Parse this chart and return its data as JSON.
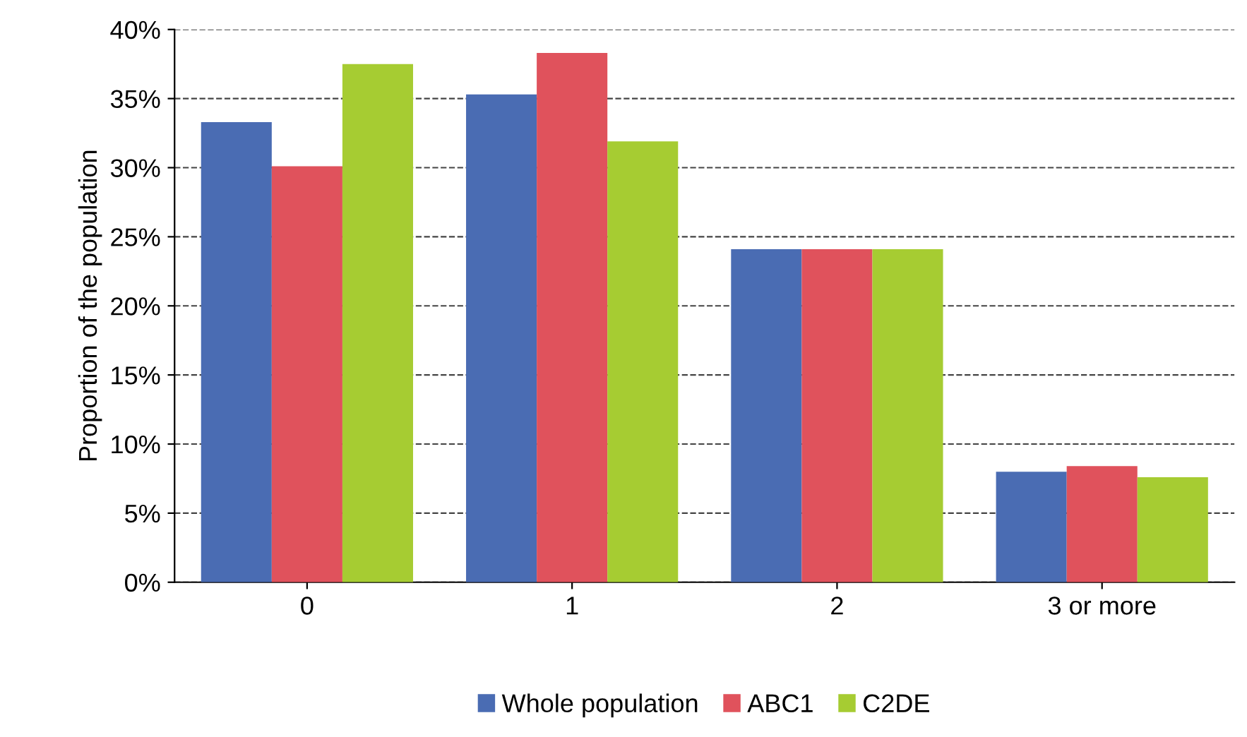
{
  "chart_data": {
    "type": "bar",
    "ylabel": "Proportion of the population",
    "categories": [
      "0",
      "1",
      "2",
      "3 or more"
    ],
    "series": [
      {
        "name": "Whole population",
        "color": "#4a6cb3",
        "values": [
          33.3,
          35.3,
          24.1,
          8.0
        ]
      },
      {
        "name": "ABC1",
        "color": "#e0525c",
        "values": [
          30.1,
          38.3,
          24.1,
          8.4
        ]
      },
      {
        "name": "C2DE",
        "color": "#a6cc32",
        "values": [
          37.5,
          31.9,
          24.1,
          7.6
        ]
      }
    ],
    "ylim": [
      0,
      40
    ],
    "yticks": [
      {
        "value": 0,
        "label": "0%"
      },
      {
        "value": 5,
        "label": "5%"
      },
      {
        "value": 10,
        "label": "10%"
      },
      {
        "value": 15,
        "label": "15%"
      },
      {
        "value": 20,
        "label": "20%"
      },
      {
        "value": 25,
        "label": "25%"
      },
      {
        "value": 30,
        "label": "30%"
      },
      {
        "value": 35,
        "label": "35%"
      },
      {
        "value": 40,
        "label": "40%"
      }
    ],
    "grid": "y",
    "legend": "bottom"
  }
}
